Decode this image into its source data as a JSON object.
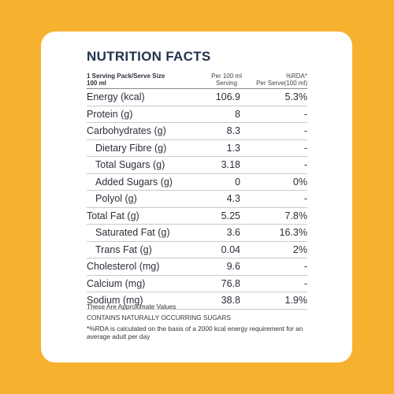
{
  "header": {
    "title": "NUTRITION FACTS"
  },
  "table": {
    "columns": [
      [
        "1 Serving Pack/Serve Size",
        "100 ml"
      ],
      [
        "Per 100 ml",
        "Serving"
      ],
      [
        "%RDA*",
        "Per Serve(100 ml)"
      ]
    ],
    "rows": [
      [
        "Energy (kcal)",
        "106.9",
        "5.3%"
      ],
      [
        "Protein (g)",
        "8",
        "-"
      ],
      [
        "Carbohydrates (g)",
        "8.3",
        "-"
      ],
      [
        "Dietary Fibre (g)",
        "1.3",
        "-"
      ],
      [
        "Total Sugars (g)",
        "3.18",
        "-"
      ],
      [
        "Added Sugars (g)",
        "0",
        "0%"
      ],
      [
        "Polyol (g)",
        "4.3",
        "-"
      ],
      [
        "Total Fat (g)",
        "5.25",
        "7.8%"
      ],
      [
        "Saturated Fat (g)",
        "3.6",
        "16.3%"
      ],
      [
        "Trans Fat (g)",
        "0.04",
        "2%"
      ],
      [
        "Cholesterol (mg)",
        "9.6",
        "-"
      ],
      [
        "Calcium (mg)",
        "76.8",
        "-"
      ],
      [
        "Sodium (mg)",
        "38.8",
        "1.9%"
      ]
    ]
  },
  "footer": {
    "notes": [
      "These Are Approximate Values",
      "CONTAINS NATURALLY OCCURRING SUGARS",
      "*%RDA is calculated on the basis of a 2000 kcal energy requirement for an average adult per day"
    ]
  }
}
